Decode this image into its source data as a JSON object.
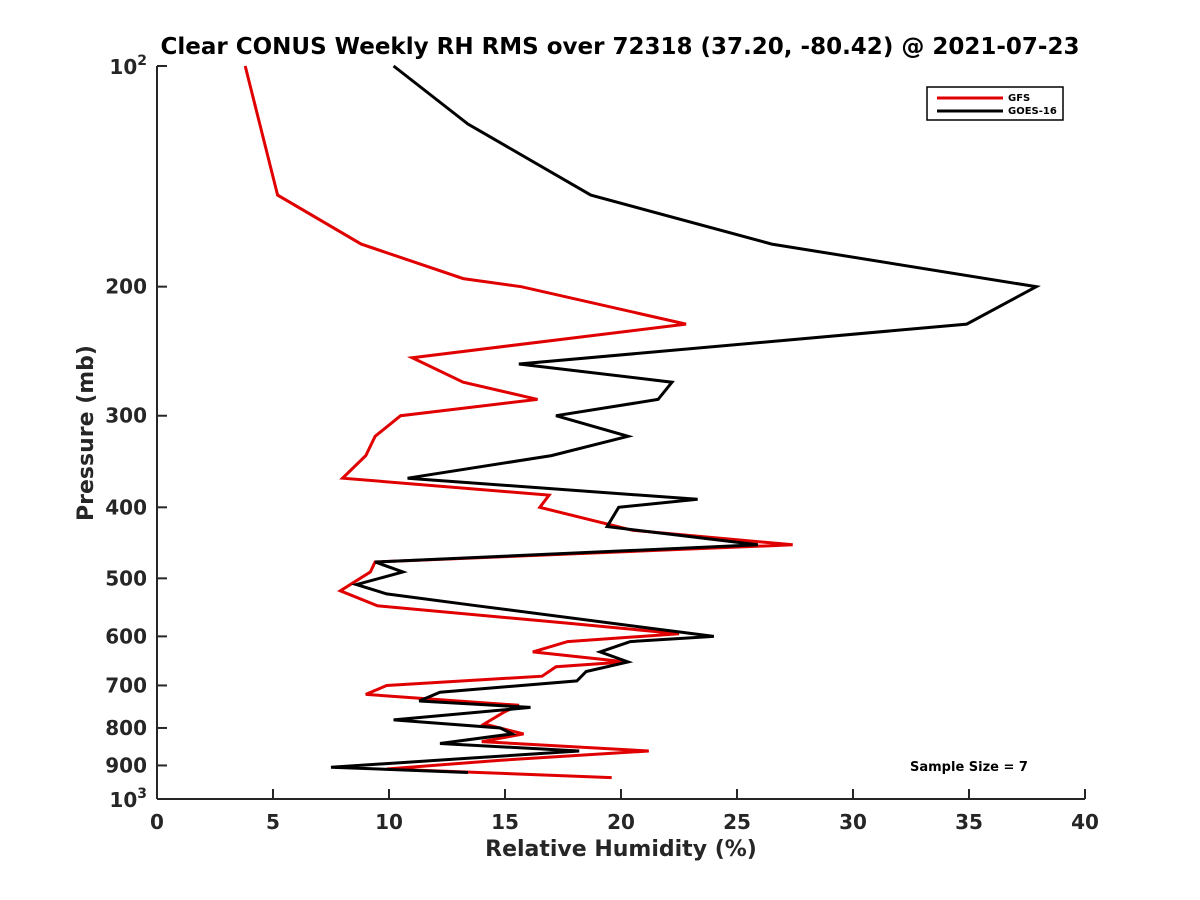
{
  "chart_data": {
    "type": "line",
    "title": "Clear CONUS Weekly RH RMS over 72318 (37.20, -80.42) @ 2021-07-23",
    "xlabel": "Relative Humidity (%)",
    "ylabel": "Pressure (mb)",
    "xlim": [
      0,
      40
    ],
    "ylim": [
      100,
      1000
    ],
    "y_scale": "log",
    "y_reversed": true,
    "x_ticks": [
      "0",
      "5",
      "10",
      "15",
      "20",
      "25",
      "30",
      "35",
      "40"
    ],
    "y_ticks": [
      {
        "value": 100,
        "base": "10",
        "exp": "2"
      },
      {
        "value": 200,
        "label": "200"
      },
      {
        "value": 300,
        "label": "300"
      },
      {
        "value": 400,
        "label": "400"
      },
      {
        "value": 500,
        "label": "500"
      },
      {
        "value": 600,
        "label": "600"
      },
      {
        "value": 700,
        "label": "700"
      },
      {
        "value": 800,
        "label": "800"
      },
      {
        "value": 900,
        "label": "900"
      },
      {
        "value": 1000,
        "base": "10",
        "exp": "3"
      }
    ],
    "legend_position": "top-right",
    "grid": false,
    "annotation": "Sample Size = 7",
    "series": [
      {
        "name": "GFS",
        "color": "#e00000",
        "points": [
          [
            3.8,
            100
          ],
          [
            5.2,
            150
          ],
          [
            8.8,
            175
          ],
          [
            13.2,
            195
          ],
          [
            15.7,
            200
          ],
          [
            22.8,
            225
          ],
          [
            11.0,
            250
          ],
          [
            13.2,
            270
          ],
          [
            16.4,
            285
          ],
          [
            10.5,
            300
          ],
          [
            9.4,
            320
          ],
          [
            9.0,
            340
          ],
          [
            8.0,
            365
          ],
          [
            16.9,
            385
          ],
          [
            16.5,
            400
          ],
          [
            20.5,
            430
          ],
          [
            27.4,
            450
          ],
          [
            9.4,
            475
          ],
          [
            9.2,
            490
          ],
          [
            7.9,
            520
          ],
          [
            9.5,
            545
          ],
          [
            17.5,
            575
          ],
          [
            22.5,
            595
          ],
          [
            17.7,
            610
          ],
          [
            16.2,
            630
          ],
          [
            20.2,
            650
          ],
          [
            17.2,
            660
          ],
          [
            16.6,
            680
          ],
          [
            9.9,
            700
          ],
          [
            9.0,
            720
          ],
          [
            15.6,
            745
          ],
          [
            15.0,
            760
          ],
          [
            14.1,
            790
          ],
          [
            15.8,
            815
          ],
          [
            14.0,
            835
          ],
          [
            21.2,
            860
          ],
          [
            14.9,
            885
          ],
          [
            9.9,
            910
          ],
          [
            19.6,
            935
          ]
        ]
      },
      {
        "name": "GOES-16",
        "color": "#000000",
        "points": [
          [
            10.2,
            100
          ],
          [
            13.4,
            120
          ],
          [
            18.7,
            150
          ],
          [
            26.5,
            175
          ],
          [
            37.9,
            200
          ],
          [
            34.9,
            225
          ],
          [
            15.6,
            255
          ],
          [
            22.2,
            270
          ],
          [
            21.6,
            285
          ],
          [
            17.2,
            300
          ],
          [
            20.3,
            320
          ],
          [
            17.0,
            340
          ],
          [
            10.8,
            365
          ],
          [
            23.3,
            390
          ],
          [
            19.9,
            400
          ],
          [
            19.4,
            425
          ],
          [
            25.9,
            450
          ],
          [
            9.4,
            475
          ],
          [
            10.6,
            490
          ],
          [
            8.6,
            510
          ],
          [
            9.9,
            525
          ],
          [
            13.8,
            545
          ],
          [
            24.0,
            600
          ],
          [
            20.4,
            610
          ],
          [
            19.1,
            630
          ],
          [
            20.3,
            650
          ],
          [
            18.5,
            670
          ],
          [
            18.1,
            690
          ],
          [
            12.2,
            715
          ],
          [
            11.3,
            735
          ],
          [
            16.1,
            750
          ],
          [
            10.2,
            780
          ],
          [
            14.8,
            800
          ],
          [
            15.3,
            815
          ],
          [
            12.2,
            840
          ],
          [
            18.2,
            860
          ],
          [
            13.4,
            880
          ],
          [
            7.5,
            905
          ],
          [
            13.4,
            920
          ]
        ]
      }
    ]
  }
}
